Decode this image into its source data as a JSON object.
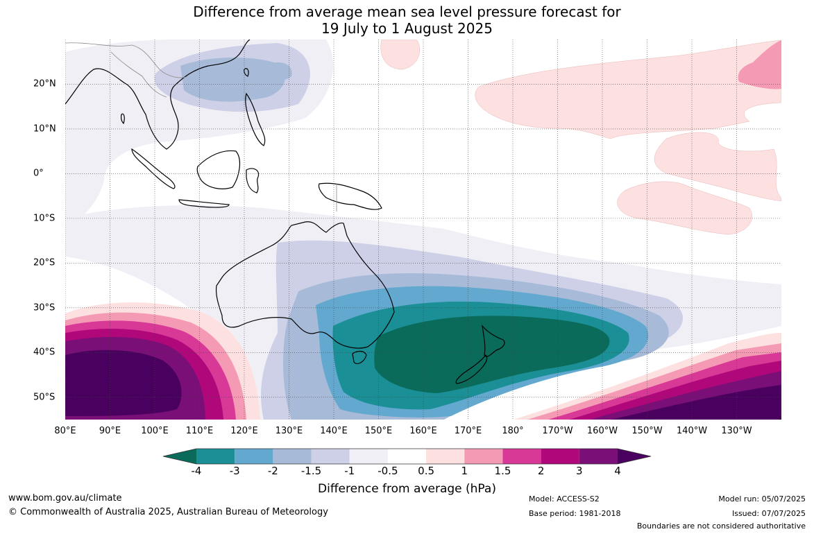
{
  "title": {
    "line1": "Difference from average mean sea level pressure forecast for",
    "line2": "19 July to 1 August 2025"
  },
  "map": {
    "lon_labels": [
      "80°E",
      "90°E",
      "100°E",
      "110°E",
      "120°E",
      "130°E",
      "140°E",
      "150°E",
      "160°E",
      "170°E",
      "180°",
      "170°W",
      "160°W",
      "150°W",
      "140°W",
      "130°W"
    ],
    "lat_labels": [
      "20°N",
      "10°N",
      "0°",
      "10°S",
      "20°S",
      "30°S",
      "40°S",
      "50°S"
    ],
    "extent": {
      "lon_min": 80,
      "lon_max": 240,
      "lat_min": -55,
      "lat_max": 30
    },
    "grid": "dotted"
  },
  "colorbar": {
    "ticks": [
      "-4",
      "-3",
      "-2",
      "-1.5",
      "-1",
      "-0.5",
      "0.5",
      "1",
      "1.5",
      "2",
      "3",
      "4"
    ],
    "colors": [
      "#0b6b5a",
      "#1a8f95",
      "#63a8cf",
      "#a7bbd9",
      "#cdd0e6",
      "#f1eff6",
      "#ffffff",
      "#fde0e0",
      "#f59ab4",
      "#d83996",
      "#b0077a",
      "#7a0f77",
      "#4a005f"
    ],
    "label": "Difference from average (hPa)"
  },
  "footer": {
    "website": "www.bom.gov.au/climate",
    "copyright": "© Commonwealth of Australia 2025, Australian Bureau of Meteorology",
    "model": "Model: ACCESS-S2",
    "base_period": "Base period: 1981-2018",
    "model_run": "Model run: 05/07/2025",
    "issued": "Issued: 07/07/2025",
    "disclaimer": "Boundaries are not considered authoritative"
  }
}
